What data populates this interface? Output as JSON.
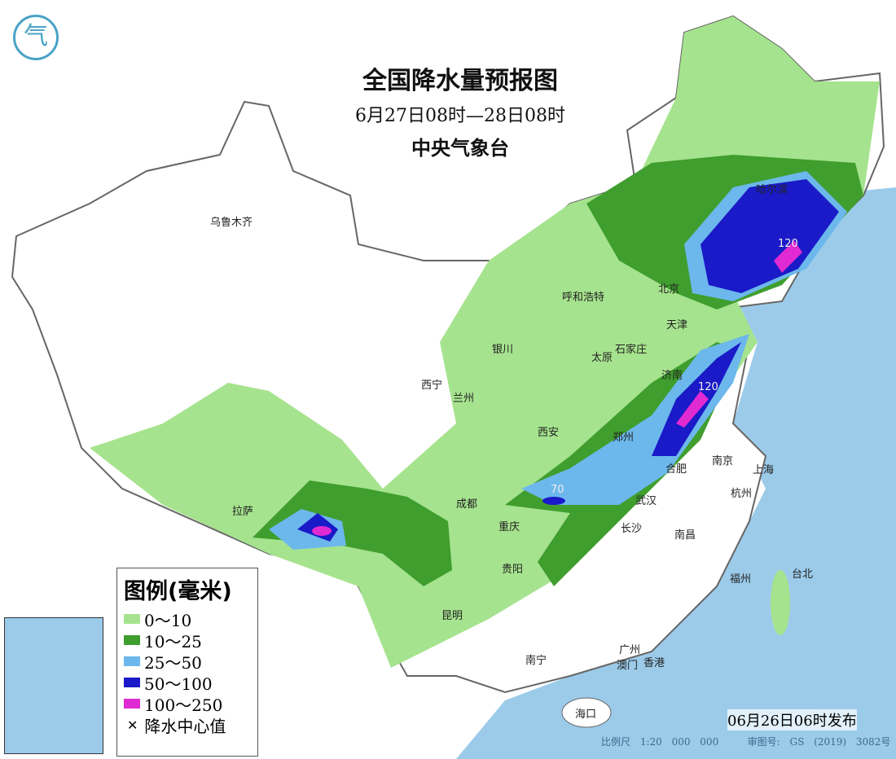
{
  "header": {
    "title": "全国降水量预报图",
    "period": "6月27日08时—28日08时",
    "agency": "中央气象台"
  },
  "logo": {
    "icon": "cma-logo"
  },
  "legend": {
    "title": "图例(毫米)",
    "items": [
      {
        "label": "0～10",
        "color": "#a6e38e"
      },
      {
        "label": "10～25",
        "color": "#3f9e2e"
      },
      {
        "label": "25～50",
        "color": "#6cb8ec"
      },
      {
        "label": "50～100",
        "color": "#1a1ac8"
      },
      {
        "label": "100～250",
        "color": "#e02ad2"
      }
    ],
    "center_label": "降水中心值"
  },
  "cities": [
    {
      "name": "乌鲁木齐"
    },
    {
      "name": "哈尔滨"
    },
    {
      "name": "呼和浩特"
    },
    {
      "name": "北京"
    },
    {
      "name": "天津"
    },
    {
      "name": "银川"
    },
    {
      "name": "太原"
    },
    {
      "name": "石家庄"
    },
    {
      "name": "济南"
    },
    {
      "name": "西宁"
    },
    {
      "name": "兰州"
    },
    {
      "name": "西安"
    },
    {
      "name": "郑州"
    },
    {
      "name": "拉萨"
    },
    {
      "name": "成都"
    },
    {
      "name": "重庆"
    },
    {
      "name": "武汉"
    },
    {
      "name": "合肥"
    },
    {
      "name": "南京"
    },
    {
      "name": "上海"
    },
    {
      "name": "杭州"
    },
    {
      "name": "长沙"
    },
    {
      "name": "南昌"
    },
    {
      "name": "贵阳"
    },
    {
      "name": "昆明"
    },
    {
      "name": "福州"
    },
    {
      "name": "台北"
    },
    {
      "name": "南宁"
    },
    {
      "name": "广州"
    },
    {
      "name": "澳门"
    },
    {
      "name": "香港"
    },
    {
      "name": "海口"
    }
  ],
  "center_values": [
    "120",
    "120",
    "70"
  ],
  "footer": {
    "issued": "06月26日06时发布",
    "scale": "比例尺 1:20 000 000",
    "map_no": "审图号: GS (2019) 3082号"
  },
  "colors": {
    "sea": "#9ccbea",
    "land": "#ffffff"
  }
}
